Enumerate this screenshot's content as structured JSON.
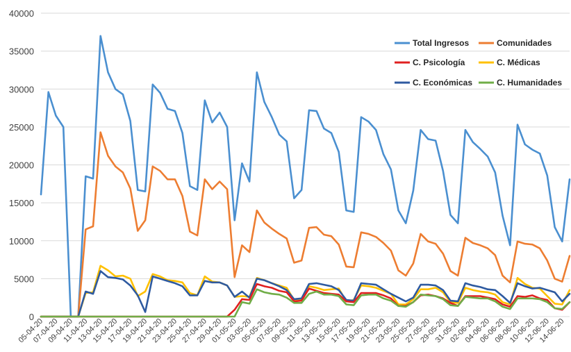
{
  "chart_data": {
    "type": "line",
    "title": "",
    "xlabel": "",
    "ylabel": "",
    "ylim": [
      0,
      40000
    ],
    "yticks": [
      "0",
      "5000",
      "10000",
      "15000",
      "20000",
      "25000",
      "30000",
      "35000",
      "40000"
    ],
    "grid": "horizontal",
    "legend": "top-right",
    "x": [
      "05-04-20",
      "06-04-20",
      "07-04-20",
      "08-04-20",
      "09-04-20",
      "10-04-20",
      "11-04-20",
      "12-04-20",
      "13-04-20",
      "14-04-20",
      "15-04-20",
      "16-04-20",
      "17-04-20",
      "18-04-20",
      "19-04-20",
      "20-04-20",
      "21-04-20",
      "22-04-20",
      "23-04-20",
      "24-04-20",
      "25-04-20",
      "26-04-20",
      "27-04-20",
      "28-04-20",
      "29-04-20",
      "30-04-20",
      "01-05-20",
      "02-05-20",
      "03-05-20",
      "04-05-20",
      "05-05-20",
      "06-05-20",
      "07-05-20",
      "08-05-20",
      "09-05-20",
      "10-05-20",
      "11-05-20",
      "12-05-20",
      "13-05-20",
      "14-05-20",
      "15-05-20",
      "16-05-20",
      "17-05-20",
      "18-05-20",
      "19-05-20",
      "20-05-20",
      "21-05-20",
      "22-05-20",
      "23-05-20",
      "24-05-20",
      "25-05-20",
      "26-05-20",
      "27-05-20",
      "28-05-20",
      "29-05-20",
      "30-05-20",
      "31-05-20",
      "01-06-20",
      "02-06-20",
      "03-06-20",
      "04-06-20",
      "05-06-20",
      "06-06-20",
      "07-06-20",
      "08-06-20",
      "09-06-20",
      "10-06-20",
      "11-06-20",
      "12-06-20",
      "13-06-20",
      "14-06-20",
      "15-06-20"
    ],
    "xtick_labels": [
      "05-04-20",
      "07-04-20",
      "09-04-20",
      "11-04-20",
      "13-04-20",
      "15-04-20",
      "17-04-20",
      "19-04-20",
      "21-04-20",
      "23-04-20",
      "25-04-20",
      "27-04-20",
      "29-04-20",
      "01-05-20",
      "03-05-20",
      "05-05-20",
      "07-05-20",
      "09-05-20",
      "11-05-20",
      "13-05-20",
      "15-05-20",
      "17-05-20",
      "19-05-20",
      "21-05-20",
      "23-05-20",
      "25-05-20",
      "27-05-20",
      "29-05-20",
      "31-05-20",
      "02-06-20",
      "04-06-20",
      "06-06-20",
      "08-06-20",
      "10-06-20",
      "12-06-20",
      "14-06-20"
    ],
    "series": [
      {
        "name": "Total Ingresos",
        "color": "#4a8fd0",
        "values": [
          16100,
          29600,
          26500,
          25000,
          0,
          0,
          18500,
          18200,
          37000,
          32200,
          30000,
          29300,
          25800,
          16700,
          16500,
          30600,
          29500,
          27400,
          27100,
          24200,
          17200,
          16700,
          28500,
          25600,
          26900,
          25000,
          12700,
          20200,
          17800,
          32200,
          28300,
          26300,
          24000,
          23100,
          15600,
          16700,
          27200,
          27100,
          24800,
          24200,
          21700,
          14000,
          13800,
          26300,
          25700,
          24600,
          21400,
          19400,
          14000,
          12300,
          16600,
          24600,
          23400,
          23200,
          19200,
          13400,
          12300,
          24600,
          23000,
          22100,
          21100,
          19000,
          13300,
          9400,
          25300,
          22700,
          22000,
          21500,
          18600,
          11800,
          9900,
          18100
        ]
      },
      {
        "name": "Comunidades",
        "color": "#ed7d31",
        "values": [
          0,
          0,
          0,
          0,
          0,
          0,
          11500,
          11900,
          24300,
          21200,
          19800,
          19000,
          16900,
          11300,
          12700,
          19800,
          19200,
          18100,
          18100,
          15900,
          11200,
          10700,
          18100,
          16800,
          17800,
          16800,
          5200,
          9400,
          8500,
          14000,
          12400,
          11600,
          10900,
          10300,
          7100,
          7400,
          11700,
          11800,
          10800,
          10600,
          9500,
          6600,
          6500,
          11100,
          10900,
          10500,
          9700,
          8700,
          6100,
          5400,
          7000,
          10900,
          9900,
          9600,
          8300,
          6000,
          5400,
          10400,
          9700,
          9400,
          9000,
          8100,
          5400,
          4500,
          9900,
          9600,
          9500,
          9000,
          7400,
          5000,
          4600,
          8000
        ]
      },
      {
        "name": "C. Psicología",
        "color": "#e02020",
        "values": [
          0,
          0,
          0,
          0,
          0,
          0,
          0,
          0,
          0,
          0,
          0,
          0,
          0,
          0,
          0,
          0,
          0,
          0,
          0,
          0,
          0,
          0,
          0,
          0,
          0,
          0,
          900,
          2300,
          2200,
          4300,
          4000,
          3800,
          3400,
          3200,
          2000,
          2100,
          3700,
          3400,
          3100,
          3000,
          2900,
          2000,
          1900,
          3100,
          3100,
          3100,
          2800,
          2400,
          1400,
          1400,
          1900,
          2800,
          2900,
          2700,
          2400,
          1800,
          1400,
          2700,
          2700,
          2700,
          2500,
          2300,
          1600,
          1300,
          2700,
          2600,
          2800,
          2400,
          2200,
          1100,
          900,
          1900
        ]
      },
      {
        "name": "C. Médicas",
        "color": "#ffc000",
        "values": [
          0,
          0,
          0,
          0,
          0,
          0,
          3100,
          3200,
          6700,
          6100,
          5300,
          5400,
          5000,
          2700,
          3300,
          5600,
          5300,
          4800,
          4700,
          4500,
          3100,
          2800,
          5300,
          4600,
          4500,
          4100,
          2600,
          2700,
          2600,
          5100,
          4800,
          4400,
          4100,
          3800,
          2200,
          2300,
          4000,
          3800,
          3500,
          3600,
          3700,
          2000,
          2200,
          4100,
          4000,
          3800,
          3400,
          3000,
          1600,
          1600,
          2300,
          3600,
          3600,
          3800,
          3200,
          1900,
          1800,
          3800,
          3500,
          3300,
          3200,
          2900,
          1900,
          1600,
          5100,
          4300,
          3800,
          3700,
          2700,
          1700,
          1600,
          3500
        ]
      },
      {
        "name": "C. Económicas",
        "color": "#2e5aa0",
        "values": [
          0,
          0,
          0,
          0,
          0,
          0,
          3300,
          3000,
          6000,
          5200,
          5100,
          4900,
          4100,
          2800,
          600,
          5300,
          5000,
          4700,
          4400,
          4000,
          2800,
          2800,
          4700,
          4500,
          4500,
          4100,
          2600,
          3300,
          2500,
          5000,
          4800,
          4400,
          4000,
          3500,
          2300,
          2400,
          4300,
          4400,
          4200,
          4000,
          3500,
          2200,
          2100,
          4400,
          4300,
          4200,
          3600,
          3000,
          2500,
          2000,
          2500,
          4200,
          4200,
          4100,
          3500,
          2100,
          2000,
          4400,
          4100,
          3900,
          3600,
          3500,
          2700,
          1800,
          4400,
          4000,
          3700,
          3800,
          3500,
          3200,
          2000,
          3000
        ]
      },
      {
        "name": "C. Humanidades",
        "color": "#70ad47",
        "values": [
          0,
          0,
          0,
          0,
          0,
          0,
          0,
          0,
          0,
          0,
          0,
          0,
          0,
          0,
          0,
          0,
          0,
          0,
          0,
          0,
          0,
          0,
          0,
          0,
          0,
          0,
          0,
          1900,
          1700,
          3600,
          3200,
          3000,
          2900,
          2500,
          1800,
          1800,
          3000,
          3300,
          2900,
          2900,
          2700,
          1600,
          1500,
          2800,
          2900,
          2900,
          2400,
          2100,
          1400,
          1300,
          1900,
          2900,
          2800,
          2700,
          2300,
          1500,
          1400,
          2600,
          2500,
          2400,
          2400,
          2000,
          1300,
          1000,
          2400,
          2400,
          2400,
          2300,
          1900,
          1100,
          1000,
          1900
        ]
      }
    ]
  }
}
